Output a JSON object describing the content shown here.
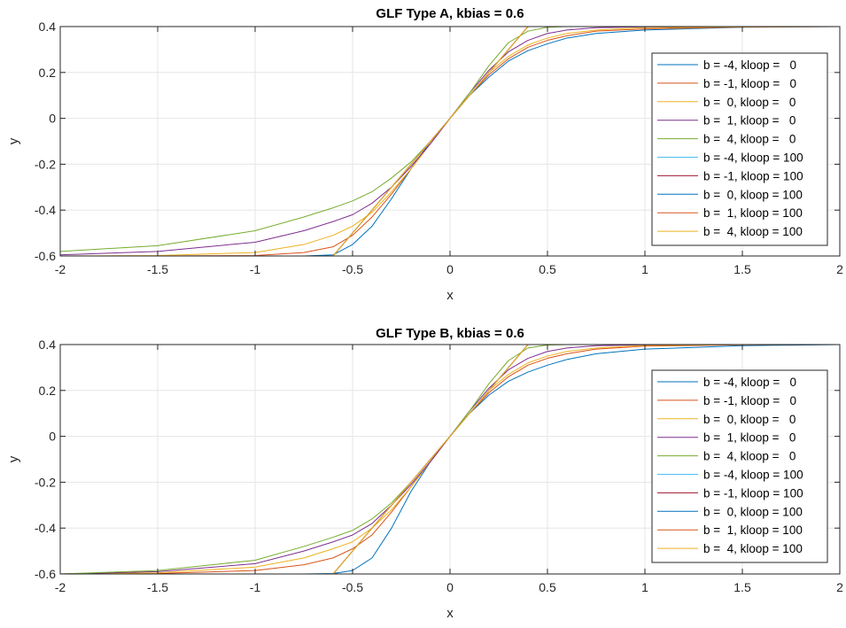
{
  "chart_data": [
    {
      "type": "line",
      "title": "GLF Type A, kbias = 0.6",
      "xlabel": "x",
      "ylabel": "y",
      "xlim": [
        -2,
        2
      ],
      "ylim": [
        -0.6,
        0.4
      ],
      "xticks": [
        -2,
        -1.5,
        -1,
        -0.5,
        0,
        0.5,
        1,
        1.5,
        2
      ],
      "xtick_labels": [
        "-2",
        "-1.5",
        "-1",
        "-0.5",
        "0",
        "0.5",
        "1",
        "1.5",
        "2"
      ],
      "yticks": [
        -0.6,
        -0.4,
        -0.2,
        0,
        0.2,
        0.4
      ],
      "ytick_labels": [
        "-0.6",
        "-0.4",
        "-0.2",
        "0",
        "0.2",
        "0.4"
      ],
      "grid": true,
      "legend_position": "right",
      "x": [
        -2,
        -1.5,
        -1,
        -0.75,
        -0.6,
        -0.5,
        -0.4,
        -0.3,
        -0.2,
        -0.1,
        0,
        0.1,
        0.2,
        0.3,
        0.4,
        0.5,
        0.6,
        0.75,
        1,
        1.5,
        2
      ],
      "series": [
        {
          "name": "b = -4, kloop =   0",
          "color": "#0072bd",
          "values": [
            -0.6,
            -0.6,
            -0.6,
            -0.6,
            -0.595,
            -0.55,
            -0.47,
            -0.35,
            -0.22,
            -0.1,
            0,
            0.1,
            0.18,
            0.25,
            0.295,
            0.325,
            0.35,
            0.37,
            0.385,
            0.397,
            0.4
          ]
        },
        {
          "name": "b = -1, kloop =   0",
          "color": "#d95319",
          "values": [
            -0.6,
            -0.6,
            -0.598,
            -0.585,
            -0.56,
            -0.51,
            -0.43,
            -0.33,
            -0.22,
            -0.11,
            0,
            0.1,
            0.19,
            0.26,
            0.31,
            0.34,
            0.36,
            0.38,
            0.39,
            0.398,
            0.4
          ]
        },
        {
          "name": "b =  0, kloop =   0",
          "color": "#edb120",
          "values": [
            -0.6,
            -0.598,
            -0.585,
            -0.55,
            -0.51,
            -0.47,
            -0.41,
            -0.32,
            -0.22,
            -0.11,
            0,
            0.1,
            0.2,
            0.27,
            0.32,
            0.35,
            0.37,
            0.385,
            0.395,
            0.399,
            0.4
          ]
        },
        {
          "name": "b =  1, kloop =   0",
          "color": "#7e2f8e",
          "values": [
            -0.595,
            -0.58,
            -0.54,
            -0.49,
            -0.45,
            -0.42,
            -0.37,
            -0.3,
            -0.21,
            -0.11,
            0,
            0.11,
            0.21,
            0.29,
            0.34,
            0.37,
            0.385,
            0.395,
            0.399,
            0.4,
            0.4
          ]
        },
        {
          "name": "b =  4, kloop =   0",
          "color": "#77ac30",
          "values": [
            -0.58,
            -0.555,
            -0.49,
            -0.43,
            -0.39,
            -0.36,
            -0.32,
            -0.26,
            -0.19,
            -0.1,
            0,
            0.11,
            0.23,
            0.33,
            0.38,
            0.397,
            0.4,
            0.4,
            0.4,
            0.4,
            0.4
          ]
        },
        {
          "name": "b = -4, kloop = 100",
          "color": "#4dbeee",
          "values": [
            -0.6,
            -0.6,
            -0.6,
            -0.6,
            -0.6,
            -0.5,
            -0.4,
            -0.3,
            -0.2,
            -0.1,
            0,
            0.1,
            0.2,
            0.3,
            0.4,
            0.4,
            0.4,
            0.4,
            0.4,
            0.4,
            0.4
          ]
        },
        {
          "name": "b = -1, kloop = 100",
          "color": "#a2142f",
          "values": [
            -0.6,
            -0.6,
            -0.6,
            -0.6,
            -0.6,
            -0.5,
            -0.4,
            -0.3,
            -0.2,
            -0.1,
            0,
            0.1,
            0.2,
            0.3,
            0.4,
            0.4,
            0.4,
            0.4,
            0.4,
            0.4,
            0.4
          ]
        },
        {
          "name": "b =  0, kloop = 100",
          "color": "#0072bd",
          "values": [
            -0.6,
            -0.6,
            -0.6,
            -0.6,
            -0.6,
            -0.5,
            -0.4,
            -0.3,
            -0.2,
            -0.1,
            0,
            0.1,
            0.2,
            0.3,
            0.4,
            0.4,
            0.4,
            0.4,
            0.4,
            0.4,
            0.4
          ]
        },
        {
          "name": "b =  1, kloop = 100",
          "color": "#d95319",
          "values": [
            -0.6,
            -0.6,
            -0.6,
            -0.6,
            -0.6,
            -0.5,
            -0.4,
            -0.3,
            -0.2,
            -0.1,
            0,
            0.1,
            0.2,
            0.3,
            0.4,
            0.4,
            0.4,
            0.4,
            0.4,
            0.4,
            0.4
          ]
        },
        {
          "name": "b =  4, kloop = 100",
          "color": "#edb120",
          "values": [
            -0.6,
            -0.6,
            -0.6,
            -0.6,
            -0.6,
            -0.5,
            -0.4,
            -0.3,
            -0.2,
            -0.1,
            0,
            0.1,
            0.2,
            0.3,
            0.4,
            0.4,
            0.4,
            0.4,
            0.4,
            0.4,
            0.4
          ]
        }
      ]
    },
    {
      "type": "line",
      "title": "GLF Type B, kbias = 0.6",
      "xlabel": "x",
      "ylabel": "y",
      "xlim": [
        -2,
        2
      ],
      "ylim": [
        -0.6,
        0.4
      ],
      "xticks": [
        -2,
        -1.5,
        -1,
        -0.5,
        0,
        0.5,
        1,
        1.5,
        2
      ],
      "xtick_labels": [
        "-2",
        "-1.5",
        "-1",
        "-0.5",
        "0",
        "0.5",
        "1",
        "1.5",
        "2"
      ],
      "yticks": [
        -0.6,
        -0.4,
        -0.2,
        0,
        0.2,
        0.4
      ],
      "ytick_labels": [
        "-0.6",
        "-0.4",
        "-0.2",
        "0",
        "0.2",
        "0.4"
      ],
      "grid": true,
      "legend_position": "right",
      "x": [
        -2,
        -1.5,
        -1,
        -0.75,
        -0.6,
        -0.5,
        -0.4,
        -0.3,
        -0.2,
        -0.1,
        0,
        0.1,
        0.2,
        0.3,
        0.4,
        0.5,
        0.6,
        0.75,
        1,
        1.5,
        2
      ],
      "series": [
        {
          "name": "b = -4, kloop =   0",
          "color": "#0072bd",
          "values": [
            -0.6,
            -0.6,
            -0.6,
            -0.6,
            -0.598,
            -0.585,
            -0.53,
            -0.4,
            -0.24,
            -0.11,
            0,
            0.1,
            0.18,
            0.24,
            0.28,
            0.31,
            0.335,
            0.36,
            0.38,
            0.395,
            0.4
          ]
        },
        {
          "name": "b = -1, kloop =   0",
          "color": "#d95319",
          "values": [
            -0.6,
            -0.598,
            -0.585,
            -0.56,
            -0.53,
            -0.49,
            -0.43,
            -0.33,
            -0.22,
            -0.11,
            0,
            0.1,
            0.19,
            0.26,
            0.31,
            0.34,
            0.36,
            0.38,
            0.393,
            0.399,
            0.4
          ]
        },
        {
          "name": "b =  0, kloop =   0",
          "color": "#edb120",
          "values": [
            -0.6,
            -0.595,
            -0.57,
            -0.53,
            -0.49,
            -0.46,
            -0.4,
            -0.32,
            -0.22,
            -0.11,
            0,
            0.1,
            0.2,
            0.27,
            0.32,
            0.35,
            0.37,
            0.385,
            0.396,
            0.4,
            0.4
          ]
        },
        {
          "name": "b =  1, kloop =   0",
          "color": "#7e2f8e",
          "values": [
            -0.6,
            -0.59,
            -0.555,
            -0.5,
            -0.46,
            -0.43,
            -0.38,
            -0.3,
            -0.21,
            -0.11,
            0,
            0.11,
            0.21,
            0.29,
            0.34,
            0.37,
            0.385,
            0.395,
            0.399,
            0.4,
            0.4
          ]
        },
        {
          "name": "b =  4, kloop =   0",
          "color": "#77ac30",
          "values": [
            -0.6,
            -0.585,
            -0.54,
            -0.48,
            -0.44,
            -0.41,
            -0.36,
            -0.29,
            -0.2,
            -0.1,
            0,
            0.11,
            0.23,
            0.33,
            0.385,
            0.398,
            0.4,
            0.4,
            0.4,
            0.4,
            0.4
          ]
        },
        {
          "name": "b = -4, kloop = 100",
          "color": "#4dbeee",
          "values": [
            -0.6,
            -0.6,
            -0.6,
            -0.6,
            -0.6,
            -0.5,
            -0.4,
            -0.3,
            -0.2,
            -0.1,
            0,
            0.1,
            0.2,
            0.3,
            0.4,
            0.4,
            0.4,
            0.4,
            0.4,
            0.4,
            0.4
          ]
        },
        {
          "name": "b = -1, kloop = 100",
          "color": "#a2142f",
          "values": [
            -0.6,
            -0.6,
            -0.6,
            -0.6,
            -0.6,
            -0.5,
            -0.4,
            -0.3,
            -0.2,
            -0.1,
            0,
            0.1,
            0.2,
            0.3,
            0.4,
            0.4,
            0.4,
            0.4,
            0.4,
            0.4,
            0.4
          ]
        },
        {
          "name": "b =  0, kloop = 100",
          "color": "#0072bd",
          "values": [
            -0.6,
            -0.6,
            -0.6,
            -0.6,
            -0.6,
            -0.5,
            -0.4,
            -0.3,
            -0.2,
            -0.1,
            0,
            0.1,
            0.2,
            0.3,
            0.4,
            0.4,
            0.4,
            0.4,
            0.4,
            0.4,
            0.4
          ]
        },
        {
          "name": "b =  1, kloop = 100",
          "color": "#d95319",
          "values": [
            -0.6,
            -0.6,
            -0.6,
            -0.6,
            -0.6,
            -0.5,
            -0.4,
            -0.3,
            -0.2,
            -0.1,
            0,
            0.1,
            0.2,
            0.3,
            0.4,
            0.4,
            0.4,
            0.4,
            0.4,
            0.4,
            0.4
          ]
        },
        {
          "name": "b =  4, kloop = 100",
          "color": "#edb120",
          "values": [
            -0.6,
            -0.6,
            -0.6,
            -0.6,
            -0.6,
            -0.5,
            -0.4,
            -0.3,
            -0.2,
            -0.1,
            0,
            0.1,
            0.2,
            0.3,
            0.4,
            0.4,
            0.4,
            0.4,
            0.4,
            0.4,
            0.4
          ]
        }
      ]
    }
  ]
}
